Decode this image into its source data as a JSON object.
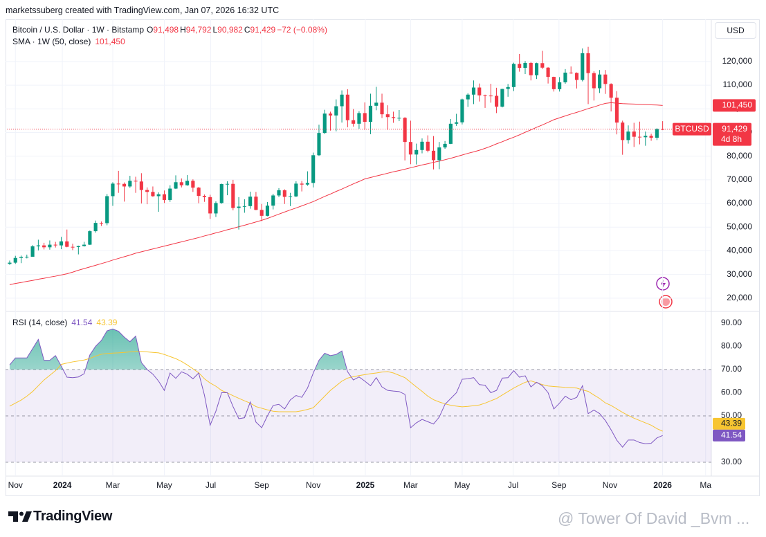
{
  "header": {
    "author_line": "marketssuberg created with TradingView.com, Jan 07, 2026 16:32 UTC",
    "currency": "USD"
  },
  "footer": {
    "brand": "TradingView",
    "watermark": "@ Tower Of David _Bvm ..."
  },
  "chart_data": {
    "type": "candlestick",
    "title": "Bitcoin / U.S. Dollar · 1W · Bitstamp",
    "ohlc_legend": [
      {
        "key": "O",
        "text": "91,498"
      },
      {
        "key": "H",
        "text": "94,792"
      },
      {
        "key": "L",
        "text": "90,982"
      },
      {
        "key": "C",
        "text": "91,429"
      }
    ],
    "change": "−72 (−0.08%)",
    "up_color": "#089981",
    "down_color": "#f23645",
    "grid": true,
    "open": [
      34500,
      35000,
      37000,
      37400,
      37500,
      41900,
      42300,
      41500,
      42600,
      42300,
      44000,
      41700,
      41600,
      42000,
      42600,
      48300,
      51800,
      51700,
      63100,
      68400,
      68300,
      67200,
      69600,
      69300,
      65700,
      64900,
      63100,
      63900,
      61500,
      66300,
      69000,
      67700,
      69600,
      66700,
      63200,
      62700,
      55800,
      60200,
      68200,
      68300,
      58100,
      58700,
      58900,
      62900,
      57300,
      54800,
      59100,
      63400,
      65600,
      62800,
      63000,
      68400,
      68000,
      68700,
      80400,
      89800,
      98000,
      97200,
      101100,
      106000,
      95200,
      93700,
      98200,
      94500,
      101300,
      102600,
      97700,
      96500,
      96100,
      96200,
      86000,
      80700,
      82600,
      86100,
      82300,
      78300,
      83700,
      85200,
      93700,
      94300,
      104000,
      106000,
      109000,
      105700,
      105600,
      105500,
      100900,
      108400,
      109200,
      119000,
      117300,
      119400,
      114200,
      119300,
      117400,
      113500,
      108300,
      111200,
      115300,
      115200,
      112200,
      123500,
      115100,
      108700,
      114500,
      110500,
      104700,
      94200,
      86800,
      90400,
      88200,
      88000,
      88600,
      87800,
      91498
    ],
    "high": [
      35900,
      37900,
      38000,
      38400,
      42400,
      44700,
      43400,
      44400,
      43800,
      45900,
      49000,
      43000,
      42200,
      43800,
      48600,
      52800,
      52400,
      64000,
      69000,
      73800,
      68900,
      71700,
      71300,
      72800,
      66800,
      67200,
      64700,
      65500,
      67700,
      71900,
      70600,
      72000,
      70200,
      67000,
      63800,
      63700,
      60900,
      68400,
      69400,
      70000,
      62700,
      61800,
      65000,
      64900,
      59800,
      60600,
      64100,
      66500,
      66000,
      64500,
      69400,
      69500,
      73600,
      81500,
      93300,
      99600,
      98800,
      104000,
      107800,
      108300,
      99900,
      99000,
      102700,
      106400,
      109300,
      106400,
      101500,
      98800,
      99500,
      96500,
      95000,
      85300,
      87500,
      88800,
      88500,
      86000,
      86400,
      95700,
      97900,
      104300,
      106600,
      112000,
      110700,
      106000,
      110600,
      108900,
      108500,
      110500,
      119500,
      123200,
      120200,
      119800,
      119500,
      124500,
      117600,
      113600,
      113400,
      116800,
      117900,
      115400,
      125500,
      126200,
      115900,
      116400,
      116400,
      110800,
      107500,
      95000,
      93000,
      94100,
      94600,
      90400,
      89500,
      91800,
      94792
    ],
    "low": [
      34100,
      34500,
      34800,
      36800,
      37500,
      40200,
      40600,
      40500,
      41400,
      40700,
      41500,
      40300,
      38500,
      41800,
      42500,
      47700,
      50500,
      50800,
      59000,
      64500,
      60800,
      66600,
      64500,
      60000,
      59700,
      62800,
      56500,
      60200,
      60700,
      66100,
      66800,
      67500,
      64900,
      60100,
      60700,
      53500,
      54300,
      59900,
      63500,
      57100,
      49000,
      56100,
      57800,
      57200,
      52600,
      54600,
      57500,
      62700,
      59800,
      58900,
      62700,
      65100,
      67500,
      66800,
      80100,
      89400,
      90800,
      90500,
      94200,
      92200,
      92500,
      91600,
      91200,
      89300,
      99400,
      96100,
      91200,
      94100,
      94800,
      78200,
      76600,
      76500,
      81200,
      81600,
      74400,
      74500,
      83100,
      85100,
      92800,
      93400,
      100800,
      102000,
      103100,
      100400,
      102600,
      98200,
      100600,
      105100,
      107500,
      115700,
      114700,
      112000,
      112600,
      116800,
      110700,
      107300,
      107300,
      110600,
      114800,
      108600,
      111600,
      102000,
      103500,
      106700,
      106300,
      98900,
      89200,
      80600,
      85300,
      83900,
      85000,
      84400,
      86500,
      86800,
      90982
    ],
    "close": [
      35000,
      37000,
      37400,
      37500,
      41900,
      42300,
      41500,
      42600,
      42300,
      44000,
      41700,
      41600,
      42000,
      42600,
      48300,
      51800,
      51700,
      63100,
      68400,
      68300,
      67200,
      69600,
      69300,
      65700,
      64900,
      63100,
      63900,
      61500,
      66300,
      69000,
      67700,
      69600,
      66700,
      63200,
      62700,
      55800,
      60200,
      68200,
      68300,
      58100,
      58700,
      58900,
      62900,
      57300,
      54800,
      59100,
      63400,
      65600,
      62800,
      63000,
      68400,
      68000,
      68700,
      80400,
      89800,
      98000,
      97200,
      101100,
      106000,
      95200,
      93700,
      98200,
      94500,
      101300,
      102600,
      97700,
      96500,
      96100,
      96200,
      86000,
      80700,
      82600,
      86100,
      82300,
      78300,
      83700,
      85200,
      93700,
      94300,
      104000,
      106000,
      109000,
      105700,
      105600,
      105500,
      100900,
      108400,
      109200,
      119000,
      117300,
      119400,
      114200,
      119300,
      117400,
      113500,
      108300,
      111200,
      115300,
      115200,
      112200,
      123500,
      115100,
      108700,
      114500,
      110500,
      104700,
      94200,
      86800,
      90400,
      88200,
      88000,
      88600,
      87800,
      91500,
      91429
    ],
    "last_price": {
      "value": 91429,
      "label": "91,429"
    },
    "countdown": "4d 8h",
    "symbol_tag": "BTCUSD",
    "xlim": [
      -0.48,
      122.5
    ],
    "xticks": [
      {
        "value": 1,
        "label": "Nov"
      },
      {
        "value": 9.2,
        "label": "2024"
      },
      {
        "value": 18,
        "label": "Mar"
      },
      {
        "value": 27,
        "label": "May"
      },
      {
        "value": 35.1,
        "label": "Jul"
      },
      {
        "value": 44,
        "label": "Sep"
      },
      {
        "value": 53,
        "label": "Nov"
      },
      {
        "value": 62.1,
        "label": "2025"
      },
      {
        "value": 70,
        "label": "Mar"
      },
      {
        "value": 79,
        "label": "May"
      },
      {
        "value": 87.9,
        "label": "Jul"
      },
      {
        "value": 95.9,
        "label": "Sep"
      },
      {
        "value": 104.8,
        "label": "Nov"
      },
      {
        "value": 114,
        "label": "2026"
      },
      {
        "value": 121.5,
        "label": "Ma"
      }
    ],
    "ylim": [
      14700,
      137800
    ],
    "yticks": [
      {
        "value": 20000,
        "label": "20,000"
      },
      {
        "value": 30000,
        "label": "30,000"
      },
      {
        "value": 40000,
        "label": "40,000"
      },
      {
        "value": 50000,
        "label": "50,000"
      },
      {
        "value": 60000,
        "label": "60,000"
      },
      {
        "value": 70000,
        "label": "70,000"
      },
      {
        "value": 80000,
        "label": "80,000"
      },
      {
        "value": 90000,
        "label": "90,000"
      },
      {
        "value": 100000,
        "label": "100,000"
      },
      {
        "value": 110000,
        "label": "110,000"
      },
      {
        "value": 120000,
        "label": "120,000"
      }
    ],
    "sma": {
      "name": "SMA · 1W (50, close)",
      "color": "#f23645",
      "last": {
        "value": 101450,
        "label": "101,450"
      },
      "values": [
        25700,
        26200,
        26600,
        27100,
        27500,
        28000,
        28400,
        28900,
        29300,
        29800,
        30300,
        31000,
        31800,
        32500,
        33200,
        33900,
        34600,
        35300,
        36100,
        36800,
        37500,
        38200,
        39000,
        39600,
        40200,
        40800,
        41400,
        42000,
        42600,
        43200,
        43800,
        44400,
        45000,
        45600,
        46300,
        46900,
        47600,
        48200,
        48900,
        49500,
        50200,
        50800,
        51500,
        52200,
        52900,
        53700,
        54600,
        55500,
        56400,
        57300,
        58100,
        59000,
        59900,
        60800,
        61900,
        63000,
        64000,
        65100,
        66100,
        67200,
        68300,
        69300,
        70400,
        71000,
        71600,
        72200,
        72800,
        73400,
        73900,
        74500,
        75100,
        75700,
        76300,
        76800,
        77400,
        77900,
        78500,
        79100,
        79800,
        80500,
        81200,
        81800,
        82500,
        83300,
        84200,
        85200,
        86100,
        87100,
        88000,
        89000,
        90100,
        91100,
        92200,
        93200,
        94300,
        95400,
        96200,
        97000,
        97800,
        98500,
        99300,
        100100,
        100800,
        101600,
        102300,
        102600,
        102400,
        102200,
        102100,
        102000,
        101900,
        101800,
        101700,
        101600,
        101450
      ]
    },
    "rsi": {
      "name": "RSI (14, close)",
      "color": "#7e57c2",
      "last": {
        "value": 41.54,
        "label": "41.54"
      },
      "ylim": [
        24.03,
        95.07
      ],
      "yticks": [
        {
          "value": 30,
          "label": "30.00"
        },
        {
          "value": 40,
          "label": "40.00"
        },
        {
          "value": 50,
          "label": "50.00"
        },
        {
          "value": 60,
          "label": "60.00"
        },
        {
          "value": 70,
          "label": "70.00"
        },
        {
          "value": 80,
          "label": "80.00"
        },
        {
          "value": 90,
          "label": "90.00"
        }
      ],
      "levels": [
        70,
        50,
        30
      ],
      "values": [
        72,
        75,
        75,
        75,
        79,
        83,
        74,
        74,
        76,
        71.5,
        66.7,
        66.5,
        66.8,
        68.2,
        76.3,
        80,
        82.5,
        86.7,
        87.5,
        86.5,
        84,
        82,
        84.4,
        73,
        70,
        68,
        65,
        61,
        68.5,
        66.2,
        69,
        68,
        66,
        68.5,
        59,
        46,
        52,
        60,
        60,
        54,
        48.8,
        49.2,
        56,
        47.3,
        44.9,
        50,
        54.5,
        55,
        53,
        56.9,
        58.8,
        58,
        62,
        68.5,
        74,
        77,
        76,
        76.5,
        78,
        69,
        65.5,
        66.8,
        65,
        63,
        66.5,
        62.5,
        61,
        60.7,
        60.5,
        59.3,
        44.9,
        47,
        48.5,
        47.5,
        46.5,
        49.5,
        55,
        57.5,
        60,
        65.8,
        66,
        66.5,
        63.5,
        63.2,
        60,
        61,
        66.3,
        66.5,
        69.5,
        66.7,
        67.3,
        62.5,
        64.5,
        63,
        60,
        53,
        55.5,
        58.5,
        57,
        58,
        63,
        51,
        52.5,
        51,
        48,
        44,
        39.5,
        36.5,
        39.6,
        39.6,
        38.5,
        38,
        38.2,
        40.5,
        41.54
      ],
      "ma": {
        "color": "#f7c531",
        "last": {
          "value": 43.39,
          "label": "43.39"
        },
        "values": [
          54.2,
          55.5,
          56.8,
          58.5,
          60.5,
          63,
          65.5,
          67.5,
          69.5,
          72.2,
          72.8,
          73.3,
          73.7,
          74.1,
          74.8,
          75.8,
          76.6,
          76.9,
          77.1,
          77.2,
          77.4,
          77.6,
          77.8,
          77.8,
          77.6,
          77.4,
          77.2,
          76.5,
          75.6,
          74.7,
          73.5,
          72,
          70.3,
          68.6,
          66,
          64.2,
          62.8,
          61,
          59.9,
          58.7,
          57.6,
          56.5,
          55.5,
          54,
          53.3,
          52.6,
          52,
          51.8,
          51.8,
          51.8,
          51.8,
          52.2,
          52.8,
          53.5,
          56,
          58.5,
          61,
          63,
          65,
          66.3,
          66.9,
          67.4,
          67.8,
          68.2,
          68.5,
          68.9,
          69.1,
          68.5,
          67.5,
          66.5,
          64.5,
          62.5,
          60.6,
          58.5,
          57,
          56,
          55.2,
          54.6,
          54.2,
          53.9,
          54.1,
          54.4,
          54.7,
          55.5,
          56.5,
          57.5,
          59,
          60.5,
          62,
          63.3,
          64.5,
          65.1,
          64.3,
          63.5,
          62.9,
          62.7,
          62.5,
          62.3,
          62.2,
          62,
          61.2,
          60.6,
          59,
          57.5,
          55.6,
          54.5,
          53,
          51.5,
          50.2,
          49,
          48,
          47,
          46,
          44.5,
          43.39
        ]
      }
    }
  }
}
